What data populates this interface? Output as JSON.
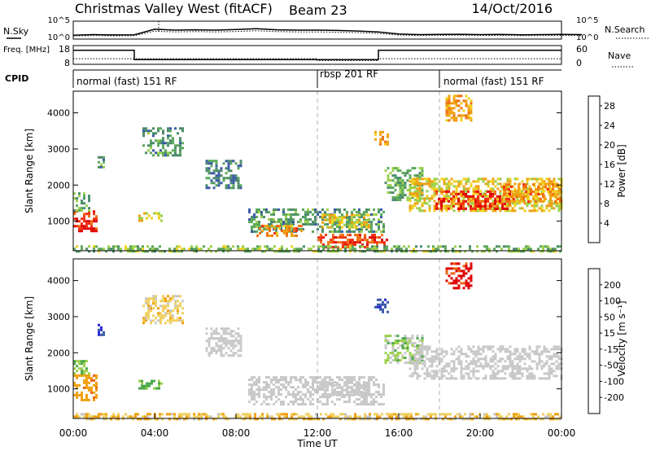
{
  "header": {
    "station": "Christmas Valley West (fitACF)",
    "beam": "Beam 23",
    "date": "14/Oct/2016"
  },
  "colors": {
    "axis": "#000000",
    "grid_dash": "#b0b0b0",
    "ground_scatter": "#c8c8c8",
    "power_scale": [
      "#2a2ad6",
      "#3a5aa8",
      "#4a8a6a",
      "#5aa85a",
      "#9ad04a",
      "#f0d020",
      "#f0a010",
      "#f07010",
      "#f03010",
      "#e00000"
    ],
    "velocity_scale": [
      "#e00000",
      "#f06010",
      "#f0a010",
      "#f0d060",
      "#c8c8c8",
      "#9ad04a",
      "#4aa84a",
      "#3a5aa8",
      "#2a2ad6"
    ]
  },
  "chart_data": [
    {
      "type": "line",
      "panel": "noise",
      "labels": {
        "left": "N.Sky",
        "right": "N.Search",
        "right_style": "dotted"
      },
      "left_ticks": [
        "10^5",
        "10^0"
      ],
      "right_ticks": [
        "10^5",
        "10^0"
      ],
      "x": [
        "00:00",
        "01:00",
        "02:00",
        "03:00",
        "03:30",
        "04:00",
        "05:00",
        "06:00",
        "07:00",
        "08:00",
        "09:00",
        "10:00",
        "11:00",
        "12:00",
        "13:00",
        "14:00",
        "15:00",
        "16:00",
        "17:00",
        "18:00",
        "19:00",
        "20:00",
        "21:00",
        "22:00",
        "23:00",
        "24:00"
      ],
      "series": [
        {
          "values": [
            0.22,
            0.25,
            0.23,
            0.24,
            0.55,
            0.5,
            0.52,
            0.5,
            0.53,
            0.58,
            0.52,
            0.5,
            0.5,
            0.48,
            0.45,
            0.4,
            0.28,
            0.25,
            0.26,
            0.27,
            0.25,
            0.26,
            0.24,
            0.25,
            0.26,
            0.25
          ]
        }
      ]
    },
    {
      "type": "line",
      "panel": "frequency",
      "labels": {
        "left": "Freq. [MHz]",
        "right": "Nave",
        "right_style": "dotted"
      },
      "left_ticks": [
        "18",
        "8"
      ],
      "right_ticks": [
        "60",
        "0"
      ],
      "x_hours": [
        0,
        3,
        3,
        12,
        12,
        15,
        15,
        24
      ],
      "freq_mhz": [
        15.5,
        15.5,
        10.5,
        10.5,
        10.5,
        10.5,
        15.5,
        15.5
      ],
      "nave": [
        18,
        18,
        18,
        18,
        12,
        12,
        18,
        18
      ]
    },
    {
      "type": "table",
      "panel": "cpid",
      "label": "CPID",
      "segments": [
        {
          "name": "normal (fast) 151 RF",
          "start_hour": 0,
          "end_hour": 12
        },
        {
          "name": "rbsp 201 RF",
          "start_hour": 12,
          "end_hour": 18
        },
        {
          "name": "normal (fast) 151 RF",
          "start_hour": 18,
          "end_hour": 24
        }
      ]
    },
    {
      "type": "heatmap",
      "panel": "power",
      "ylabel": "Slant Range [km]",
      "yticks": [
        1000,
        2000,
        3000,
        4000
      ],
      "ylim": [
        180,
        4600
      ],
      "xlim": [
        0,
        24
      ],
      "colorbar": {
        "label": "Power [dB]",
        "ticks": [
          4,
          8,
          12,
          16,
          20,
          24,
          28
        ],
        "range": [
          0,
          30
        ]
      },
      "patches": [
        {
          "t0": 0,
          "t1": 1.2,
          "r0": 700,
          "r1": 1300,
          "value": 26
        },
        {
          "t0": 0,
          "t1": 0.8,
          "r0": 1300,
          "r1": 1800,
          "value": 11
        },
        {
          "t0": 1.2,
          "t1": 1.5,
          "r0": 2500,
          "r1": 2800,
          "value": 9
        },
        {
          "t0": 3.4,
          "t1": 5.4,
          "r0": 2800,
          "r1": 3600,
          "value": 9
        },
        {
          "t0": 3.2,
          "t1": 4.4,
          "r0": 1000,
          "r1": 1250,
          "value": 16
        },
        {
          "t0": 6.5,
          "t1": 8.2,
          "r0": 1900,
          "r1": 2700,
          "value": 7
        },
        {
          "t0": 8.6,
          "t1": 15.3,
          "r0": 700,
          "r1": 1350,
          "value": 9
        },
        {
          "t0": 9.0,
          "t1": 11.2,
          "r0": 600,
          "r1": 900,
          "value": 21
        },
        {
          "t0": 12.2,
          "t1": 14.5,
          "r0": 850,
          "r1": 1200,
          "value": 17
        },
        {
          "t0": 12.0,
          "t1": 15.4,
          "r0": 300,
          "r1": 650,
          "value": 25
        },
        {
          "t0": 14.8,
          "t1": 15.4,
          "r0": 3100,
          "r1": 3500,
          "value": 19
        },
        {
          "t0": 15.3,
          "t1": 17.2,
          "r0": 1600,
          "r1": 2500,
          "value": 11
        },
        {
          "t0": 16.5,
          "t1": 24,
          "r0": 1300,
          "r1": 2200,
          "value": 17
        },
        {
          "t0": 17.8,
          "t1": 21.5,
          "r0": 1350,
          "r1": 1850,
          "value": 26
        },
        {
          "t0": 21.0,
          "t1": 24,
          "r0": 1550,
          "r1": 2050,
          "value": 21
        },
        {
          "t0": 18.3,
          "t1": 19.6,
          "r0": 3800,
          "r1": 4500,
          "value": 20
        },
        {
          "t0": 0,
          "t1": 24,
          "r0": 180,
          "r1": 330,
          "value": 12
        }
      ]
    },
    {
      "type": "heatmap",
      "panel": "velocity",
      "ylabel": "Slant Range [km]",
      "yticks": [
        1000,
        2000,
        3000,
        4000
      ],
      "ylim": [
        180,
        4600
      ],
      "xlim": [
        0,
        24
      ],
      "xticks": [
        "00:00",
        "04:00",
        "08:00",
        "12:00",
        "16:00",
        "20:00",
        "00:00"
      ],
      "xlabel": "Time UT",
      "colorbar": {
        "label": "Velocity [m s⁻¹]",
        "ticks": [
          -200,
          -100,
          -50,
          -15,
          15,
          50,
          100,
          200
        ],
        "range": [
          -250,
          250
        ]
      },
      "patches": [
        {
          "t0": 0,
          "t1": 1.2,
          "r0": 700,
          "r1": 1400,
          "value": -80,
          "gs": false
        },
        {
          "t0": 0,
          "t1": 0.8,
          "r0": 1400,
          "r1": 1800,
          "value": 40,
          "gs": false
        },
        {
          "t0": 1.2,
          "t1": 1.5,
          "r0": 2500,
          "r1": 2800,
          "value": 200,
          "gs": false
        },
        {
          "t0": 3.4,
          "t1": 5.4,
          "r0": 2800,
          "r1": 3600,
          "value": -30,
          "gs": false
        },
        {
          "t0": 3.2,
          "t1": 4.4,
          "r0": 1000,
          "r1": 1250,
          "value": 60,
          "gs": false
        },
        {
          "t0": 6.5,
          "t1": 8.2,
          "r0": 1900,
          "r1": 2700,
          "value": 0,
          "gs": true
        },
        {
          "t0": 8.6,
          "t1": 15.3,
          "r0": 600,
          "r1": 1350,
          "value": 0,
          "gs": true
        },
        {
          "t0": 12.2,
          "t1": 14.5,
          "r0": 850,
          "r1": 1200,
          "value": 0,
          "gs": true
        },
        {
          "t0": 14.8,
          "t1": 15.4,
          "r0": 3100,
          "r1": 3500,
          "value": 180,
          "gs": false
        },
        {
          "t0": 15.3,
          "t1": 17.2,
          "r0": 1700,
          "r1": 2500,
          "value": 30,
          "gs": false
        },
        {
          "t0": 16.5,
          "t1": 24,
          "r0": 1300,
          "r1": 2200,
          "value": 0,
          "gs": true
        },
        {
          "t0": 18.3,
          "t1": 19.6,
          "r0": 3800,
          "r1": 4500,
          "value": -220,
          "gs": false
        },
        {
          "t0": 0,
          "t1": 24,
          "r0": 180,
          "r1": 330,
          "value": -40,
          "gs": false
        }
      ]
    }
  ]
}
